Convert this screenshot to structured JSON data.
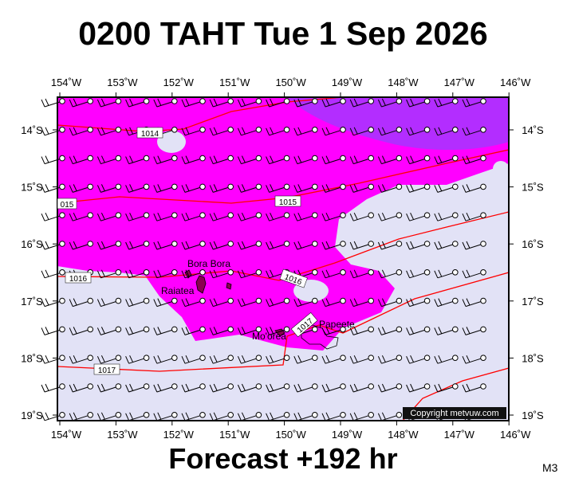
{
  "title": "0200 TAHT Tue 1 Sep 2026",
  "footer": "Forecast +192 hr",
  "model": "M3",
  "copyright": "Copyright metvuw.com",
  "longitude_labels": [
    "154˚W",
    "153˚W",
    "152˚W",
    "151˚W",
    "150˚W",
    "149˚W",
    "148˚W",
    "147˚W",
    "146˚W"
  ],
  "latitude_labels": [
    "14˚S",
    "15˚S",
    "16˚S",
    "17˚S",
    "18˚S",
    "19˚S"
  ],
  "isobar_labels": [
    "1014",
    "015",
    "1015",
    "1016",
    "1016",
    "1017",
    "1017"
  ],
  "places": [
    "Bora Bora",
    "Raiatea",
    "Mo'orea",
    "Papeete"
  ]
}
